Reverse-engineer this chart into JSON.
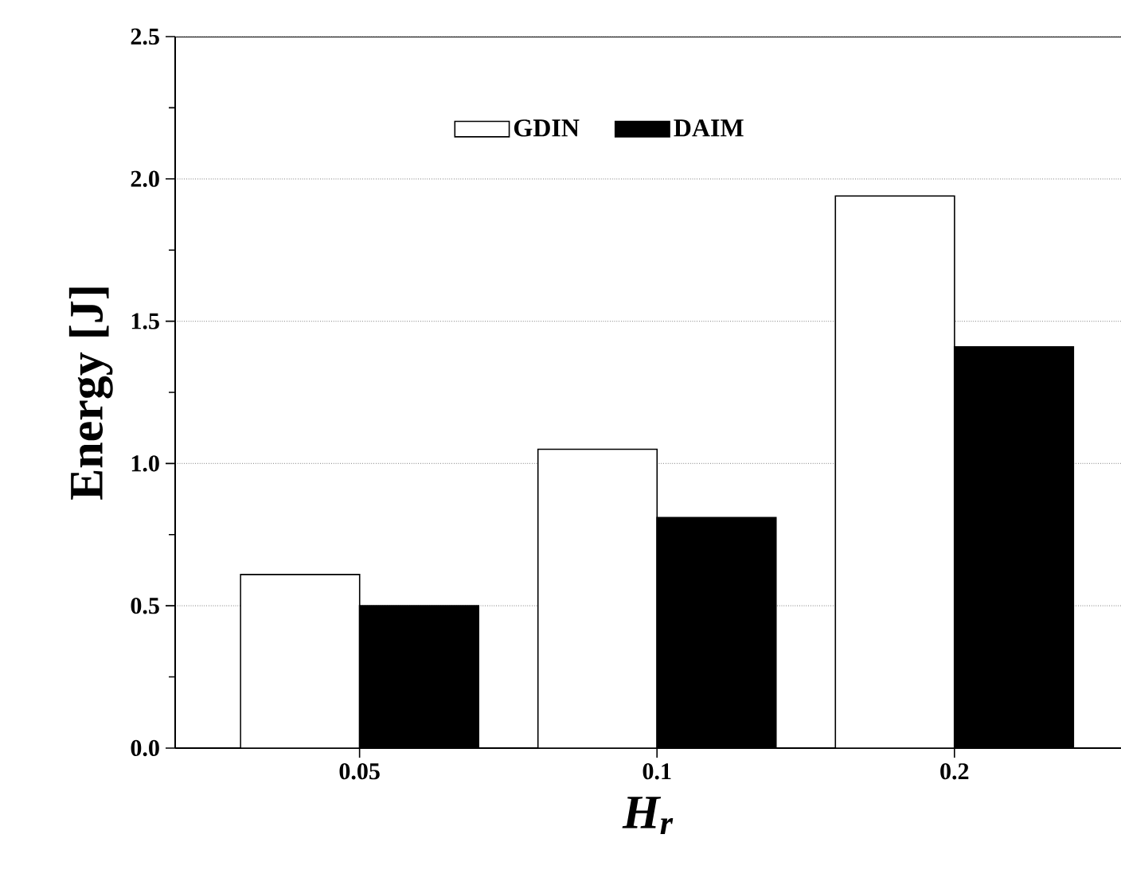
{
  "chart_data": {
    "type": "bar",
    "xlabel": "H$_{r}$",
    "ylabel": "Energy [J]",
    "categories": [
      "0.05",
      "0.1",
      "0.2"
    ],
    "series": [
      {
        "name": "GDIN",
        "color": "#ffffff",
        "values": [
          0.61,
          1.05,
          1.94
        ]
      },
      {
        "name": "DAIM",
        "color": "#000000",
        "values": [
          0.5,
          0.81,
          1.41
        ]
      }
    ],
    "ylim": [
      0,
      2.5
    ],
    "yticks": [
      {
        "value": 0,
        "label": "0.0"
      },
      0.5,
      {
        "value": 1,
        "label": "1.0"
      },
      1.5,
      {
        "value": 2,
        "label": "2.0"
      },
      2.5
    ],
    "grid": "y",
    "legend": "top"
  }
}
